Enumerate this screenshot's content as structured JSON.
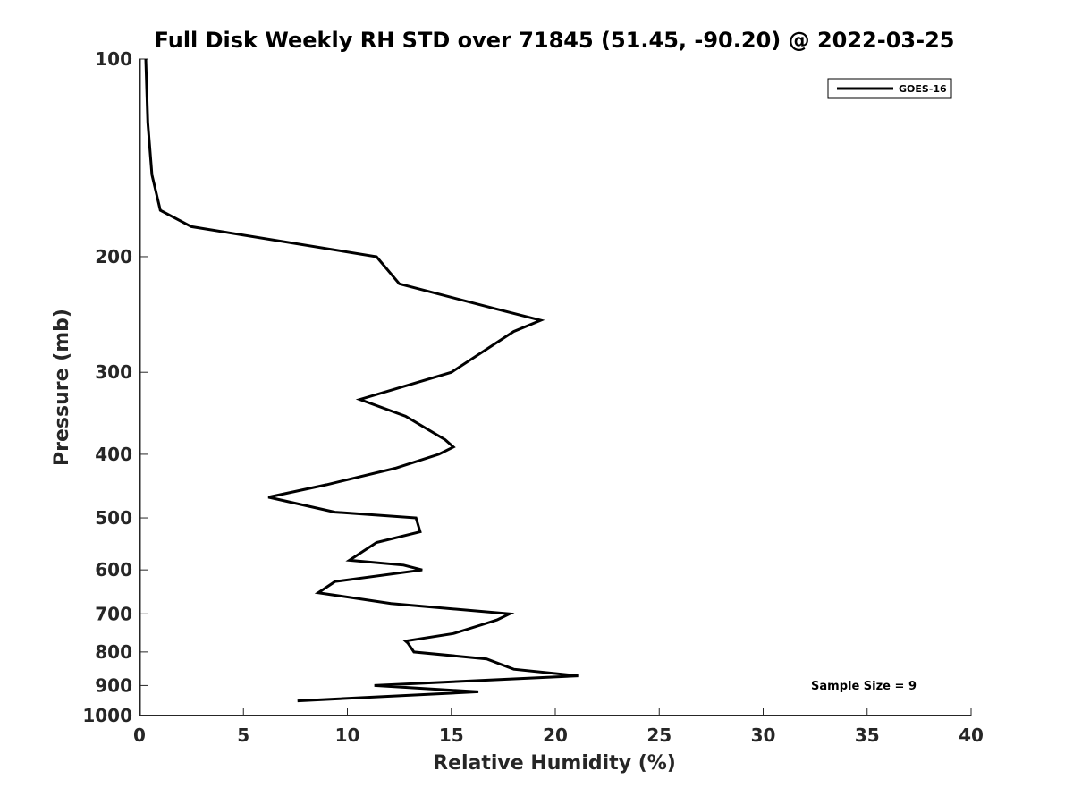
{
  "chart_data": {
    "type": "line",
    "title": "Full Disk Weekly RH STD over 71845 (51.45, -90.20) @ 2022-03-25",
    "xlabel": "Relative Humidity (%)",
    "ylabel": "Pressure (mb)",
    "xlim": [
      0,
      40
    ],
    "ylim": [
      100,
      1000
    ],
    "y_scale": "log",
    "y_reversed": true,
    "x_ticks": [
      0,
      5,
      10,
      15,
      20,
      25,
      30,
      35,
      40
    ],
    "y_ticks": [
      100,
      200,
      300,
      400,
      500,
      600,
      700,
      800,
      900,
      1000
    ],
    "grid": false,
    "legend": {
      "position": "top-right"
    },
    "series": [
      {
        "name": "GOES-16",
        "color": "#000000",
        "points": [
          [
            0.3,
            100
          ],
          [
            0.4,
            125
          ],
          [
            0.6,
            150
          ],
          [
            1.0,
            170
          ],
          [
            2.5,
            180
          ],
          [
            11.4,
            200
          ],
          [
            12.5,
            220
          ],
          [
            17.1,
            240
          ],
          [
            19.3,
            250
          ],
          [
            18.0,
            260
          ],
          [
            15.0,
            300
          ],
          [
            10.6,
            330
          ],
          [
            12.8,
            350
          ],
          [
            14.7,
            380
          ],
          [
            15.1,
            390
          ],
          [
            14.4,
            400
          ],
          [
            12.3,
            420
          ],
          [
            9.0,
            445
          ],
          [
            6.2,
            465
          ],
          [
            9.4,
            490
          ],
          [
            13.3,
            500
          ],
          [
            13.5,
            525
          ],
          [
            11.4,
            545
          ],
          [
            10.1,
            580
          ],
          [
            12.7,
            590
          ],
          [
            13.6,
            600
          ],
          [
            9.4,
            625
          ],
          [
            8.6,
            650
          ],
          [
            12.1,
            675
          ],
          [
            17.8,
            700
          ],
          [
            17.2,
            715
          ],
          [
            16.6,
            725
          ],
          [
            15.1,
            750
          ],
          [
            12.8,
            770
          ],
          [
            12.9,
            775
          ],
          [
            13.2,
            800
          ],
          [
            16.7,
            820
          ],
          [
            18.0,
            850
          ],
          [
            21.1,
            870
          ],
          [
            11.3,
            900
          ],
          [
            16.3,
            920
          ],
          [
            7.6,
            950
          ]
        ]
      }
    ],
    "annotations": [
      {
        "text": "Sample Size = 9",
        "position": "bottom-right"
      }
    ]
  }
}
